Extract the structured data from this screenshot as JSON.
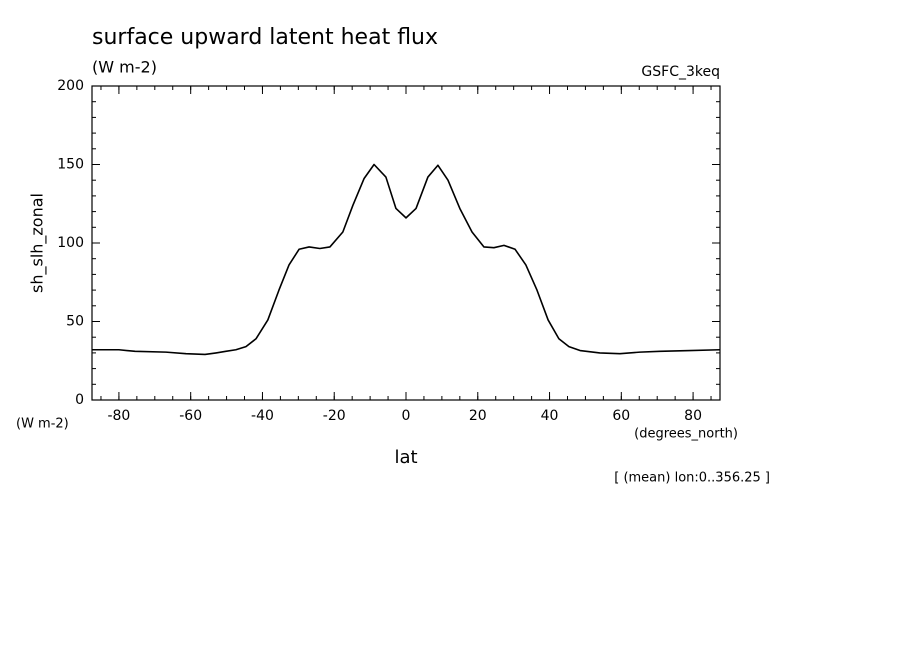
{
  "chart_data": {
    "type": "line",
    "title": "surface upward latent heat flux",
    "subtitle": "(W m-2)",
    "dataset_label": "GSFC_3keq",
    "y_label": "sh_slh_zonal",
    "y_units": "(W m-2)",
    "x_units": "(degrees_north)",
    "x_label": "lat",
    "annotation": "[ (mean) lon:0..356.25 ]",
    "color": "#000000",
    "x": [
      -87.5,
      -80,
      -75.5,
      -66.9,
      -61.3,
      -56,
      -52.9,
      -50.2,
      -47.4,
      -44.6,
      -41.8,
      -38.5,
      -35.4,
      -32.6,
      -29.8,
      -27,
      -24,
      -21.2,
      -17.6,
      -14.8,
      -11.7,
      -8.9,
      -5.6,
      -2.8,
      0,
      2.8,
      6.1,
      8.9,
      11.7,
      15,
      18.4,
      21.7,
      24.5,
      27.3,
      30.4,
      33.4,
      36.5,
      39.6,
      42.6,
      45.4,
      48.5,
      54,
      59.6,
      65.2,
      70.8,
      79.1,
      87.5
    ],
    "values": [
      32,
      32,
      31,
      30.5,
      29.5,
      29,
      30,
      31,
      32,
      34,
      39,
      51,
      70,
      86,
      96,
      97.5,
      96.5,
      97.5,
      107,
      124,
      141,
      150,
      142,
      122,
      116,
      122,
      142,
      149.5,
      140,
      122,
      107,
      97.5,
      97,
      98.5,
      96,
      86,
      70,
      51,
      39,
      34,
      31.5,
      30,
      29.5,
      30.5,
      31,
      31.5,
      32
    ],
    "xlim": [
      -87.5,
      87.5
    ],
    "ylim": [
      0,
      200
    ],
    "xticks": [
      -80,
      -60,
      -40,
      -20,
      0,
      20,
      40,
      60,
      80
    ],
    "yticks": [
      0,
      50,
      100,
      150,
      200
    ]
  }
}
